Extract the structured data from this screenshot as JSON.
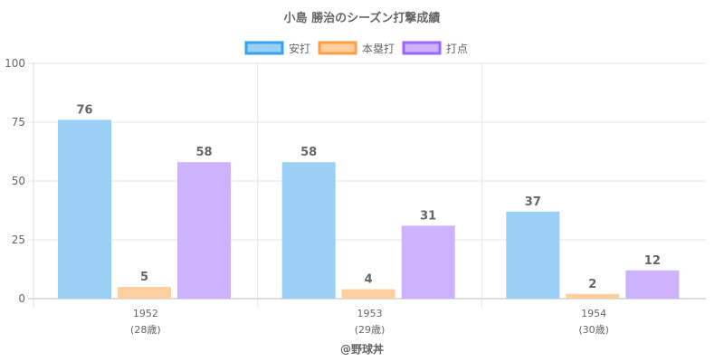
{
  "chart_data": {
    "type": "bar",
    "title": "小島 勝治のシーズン打撃成績",
    "categories": [
      "1952",
      "1953",
      "1954"
    ],
    "category_sublabels": [
      "(28歳)",
      "(29歳)",
      "(30歳)"
    ],
    "series": [
      {
        "name": "安打",
        "values": [
          76,
          58,
          37
        ],
        "fill": "#9ad0f5",
        "stroke": "#36a2eb"
      },
      {
        "name": "本塁打",
        "values": [
          5,
          4,
          2
        ],
        "fill": "#ffcf9f",
        "stroke": "#ff9f40"
      },
      {
        "name": "打点",
        "values": [
          58,
          31,
          12
        ],
        "fill": "#ccb2ff",
        "stroke": "#9966ff"
      }
    ],
    "ylim": [
      0,
      100
    ],
    "yticks": [
      0,
      25,
      50,
      75,
      100
    ],
    "grid": true,
    "legend": "top-center",
    "xlabel": "",
    "ylabel": "",
    "footer": "@野球丼"
  }
}
